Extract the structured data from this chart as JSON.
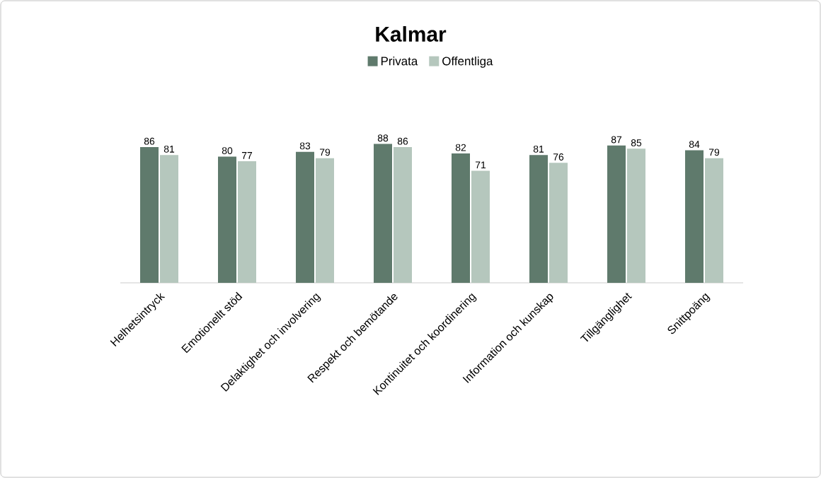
{
  "chart_data": {
    "type": "bar",
    "title": "Kalmar",
    "categories": [
      "Helhetsintryck",
      "Emotionellt stöd",
      "Delaktighet och involvering",
      "Respekt och bemötande",
      "Kontinuitet och koordinering",
      "Information och kunskap",
      "Tillgänglighet",
      "Snittpoäng"
    ],
    "series": [
      {
        "name": "Privata",
        "color": "#5f7a6c",
        "values": [
          86,
          80,
          83,
          88,
          82,
          81,
          87,
          84
        ]
      },
      {
        "name": "Offentliga",
        "color": "#b5c7bd",
        "values": [
          81,
          77,
          79,
          86,
          71,
          76,
          85,
          79
        ]
      }
    ],
    "data_labels": true,
    "legend": "top"
  }
}
